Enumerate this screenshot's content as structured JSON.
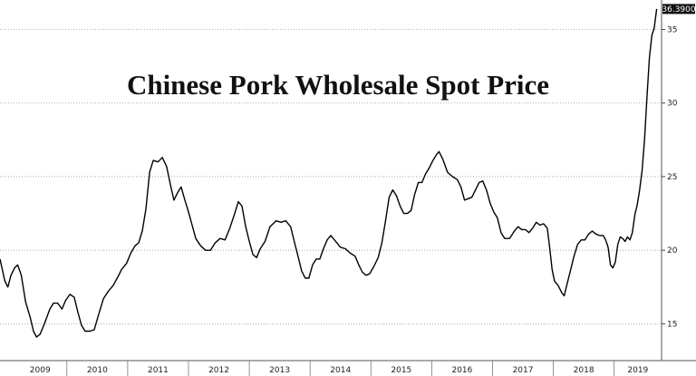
{
  "chart_data": {
    "type": "line",
    "title": "Chinese Pork Wholesale Spot Price",
    "xlabel": "",
    "ylabel": "",
    "ylim": [
      12.5,
      37
    ],
    "y_ticks": [
      15,
      20,
      25,
      30,
      35
    ],
    "x_range": [
      2008.9,
      2019.78
    ],
    "x_years": [
      "2009",
      "2010",
      "2011",
      "2012",
      "2013",
      "2014",
      "2015",
      "2016",
      "2017",
      "2018",
      "2019"
    ],
    "last_value_label": "36.3900",
    "grid": "horizontal dotted",
    "legend": "none",
    "colors": {
      "line": "#000000",
      "grid": "#9a9a9a",
      "label_bg": "#111111"
    },
    "series": [
      {
        "values": [
          [
            2008.9,
            19.4
          ],
          [
            2008.98,
            17.9
          ],
          [
            2009.03,
            17.5
          ],
          [
            2009.08,
            18.3
          ],
          [
            2009.14,
            18.8
          ],
          [
            2009.19,
            19.0
          ],
          [
            2009.25,
            18.3
          ],
          [
            2009.32,
            16.5
          ],
          [
            2009.4,
            15.4
          ],
          [
            2009.45,
            14.5
          ],
          [
            2009.5,
            14.1
          ],
          [
            2009.56,
            14.3
          ],
          [
            2009.63,
            15.0
          ],
          [
            2009.72,
            16.0
          ],
          [
            2009.78,
            16.4
          ],
          [
            2009.85,
            16.4
          ],
          [
            2009.92,
            16.0
          ],
          [
            2009.98,
            16.6
          ],
          [
            2010.05,
            17.0
          ],
          [
            2010.12,
            16.8
          ],
          [
            2010.18,
            15.8
          ],
          [
            2010.24,
            14.9
          ],
          [
            2010.3,
            14.5
          ],
          [
            2010.38,
            14.5
          ],
          [
            2010.45,
            14.6
          ],
          [
            2010.52,
            15.6
          ],
          [
            2010.6,
            16.7
          ],
          [
            2010.68,
            17.2
          ],
          [
            2010.76,
            17.6
          ],
          [
            2010.84,
            18.2
          ],
          [
            2010.9,
            18.7
          ],
          [
            2010.98,
            19.1
          ],
          [
            2011.05,
            19.8
          ],
          [
            2011.12,
            20.3
          ],
          [
            2011.18,
            20.5
          ],
          [
            2011.24,
            21.3
          ],
          [
            2011.3,
            22.8
          ],
          [
            2011.36,
            25.3
          ],
          [
            2011.42,
            26.1
          ],
          [
            2011.5,
            26.0
          ],
          [
            2011.57,
            26.3
          ],
          [
            2011.64,
            25.7
          ],
          [
            2011.7,
            24.5
          ],
          [
            2011.76,
            23.4
          ],
          [
            2011.82,
            23.9
          ],
          [
            2011.88,
            24.3
          ],
          [
            2011.94,
            23.4
          ],
          [
            2012.0,
            22.6
          ],
          [
            2012.06,
            21.7
          ],
          [
            2012.12,
            20.8
          ],
          [
            2012.2,
            20.3
          ],
          [
            2012.28,
            20.0
          ],
          [
            2012.36,
            20.0
          ],
          [
            2012.44,
            20.5
          ],
          [
            2012.52,
            20.8
          ],
          [
            2012.6,
            20.7
          ],
          [
            2012.68,
            21.5
          ],
          [
            2012.76,
            22.5
          ],
          [
            2012.82,
            23.3
          ],
          [
            2012.88,
            23.0
          ],
          [
            2012.94,
            21.6
          ],
          [
            2013.0,
            20.6
          ],
          [
            2013.06,
            19.7
          ],
          [
            2013.12,
            19.5
          ],
          [
            2013.18,
            20.1
          ],
          [
            2013.26,
            20.6
          ],
          [
            2013.34,
            21.6
          ],
          [
            2013.44,
            22.0
          ],
          [
            2013.52,
            21.9
          ],
          [
            2013.6,
            22.0
          ],
          [
            2013.68,
            21.6
          ],
          [
            2013.74,
            20.6
          ],
          [
            2013.8,
            19.6
          ],
          [
            2013.86,
            18.6
          ],
          [
            2013.92,
            18.1
          ],
          [
            2013.98,
            18.1
          ],
          [
            2014.04,
            19.0
          ],
          [
            2014.1,
            19.4
          ],
          [
            2014.16,
            19.4
          ],
          [
            2014.22,
            20.1
          ],
          [
            2014.28,
            20.7
          ],
          [
            2014.34,
            21.0
          ],
          [
            2014.42,
            20.6
          ],
          [
            2014.5,
            20.2
          ],
          [
            2014.58,
            20.1
          ],
          [
            2014.66,
            19.8
          ],
          [
            2014.74,
            19.6
          ],
          [
            2014.8,
            19.0
          ],
          [
            2014.86,
            18.5
          ],
          [
            2014.92,
            18.3
          ],
          [
            2014.98,
            18.4
          ],
          [
            2015.05,
            18.9
          ],
          [
            2015.12,
            19.5
          ],
          [
            2015.18,
            20.5
          ],
          [
            2015.24,
            22.0
          ],
          [
            2015.3,
            23.6
          ],
          [
            2015.36,
            24.1
          ],
          [
            2015.42,
            23.7
          ],
          [
            2015.48,
            23.0
          ],
          [
            2015.54,
            22.5
          ],
          [
            2015.6,
            22.5
          ],
          [
            2015.66,
            22.7
          ],
          [
            2015.72,
            23.8
          ],
          [
            2015.78,
            24.6
          ],
          [
            2015.84,
            24.6
          ],
          [
            2015.9,
            25.2
          ],
          [
            2015.96,
            25.6
          ],
          [
            2016.02,
            26.1
          ],
          [
            2016.08,
            26.5
          ],
          [
            2016.12,
            26.7
          ],
          [
            2016.18,
            26.2
          ],
          [
            2016.26,
            25.3
          ],
          [
            2016.34,
            25.0
          ],
          [
            2016.42,
            24.8
          ],
          [
            2016.48,
            24.3
          ],
          [
            2016.54,
            23.4
          ],
          [
            2016.6,
            23.5
          ],
          [
            2016.66,
            23.6
          ],
          [
            2016.72,
            24.1
          ],
          [
            2016.78,
            24.6
          ],
          [
            2016.84,
            24.7
          ],
          [
            2016.9,
            24.1
          ],
          [
            2016.96,
            23.2
          ],
          [
            2017.02,
            22.6
          ],
          [
            2017.08,
            22.2
          ],
          [
            2017.14,
            21.2
          ],
          [
            2017.2,
            20.8
          ],
          [
            2017.28,
            20.8
          ],
          [
            2017.36,
            21.3
          ],
          [
            2017.42,
            21.6
          ],
          [
            2017.48,
            21.4
          ],
          [
            2017.54,
            21.4
          ],
          [
            2017.6,
            21.2
          ],
          [
            2017.66,
            21.5
          ],
          [
            2017.72,
            21.9
          ],
          [
            2017.78,
            21.7
          ],
          [
            2017.84,
            21.8
          ],
          [
            2017.9,
            21.5
          ],
          [
            2017.94,
            20.2
          ],
          [
            2017.98,
            18.7
          ],
          [
            2018.02,
            17.9
          ],
          [
            2018.08,
            17.6
          ],
          [
            2018.14,
            17.1
          ],
          [
            2018.18,
            16.9
          ],
          [
            2018.22,
            17.6
          ],
          [
            2018.28,
            18.6
          ],
          [
            2018.34,
            19.6
          ],
          [
            2018.4,
            20.4
          ],
          [
            2018.46,
            20.7
          ],
          [
            2018.52,
            20.7
          ],
          [
            2018.58,
            21.1
          ],
          [
            2018.64,
            21.3
          ],
          [
            2018.7,
            21.1
          ],
          [
            2018.76,
            21.0
          ],
          [
            2018.82,
            21.0
          ],
          [
            2018.86,
            20.7
          ],
          [
            2018.9,
            20.2
          ],
          [
            2018.94,
            19.0
          ],
          [
            2018.98,
            18.8
          ],
          [
            2019.02,
            19.2
          ],
          [
            2019.06,
            20.4
          ],
          [
            2019.1,
            20.9
          ],
          [
            2019.14,
            20.8
          ],
          [
            2019.18,
            20.6
          ],
          [
            2019.22,
            20.9
          ],
          [
            2019.26,
            20.7
          ],
          [
            2019.3,
            21.2
          ],
          [
            2019.34,
            22.4
          ],
          [
            2019.38,
            23.1
          ],
          [
            2019.42,
            24.1
          ],
          [
            2019.46,
            25.4
          ],
          [
            2019.5,
            27.5
          ],
          [
            2019.54,
            30.4
          ],
          [
            2019.58,
            33.1
          ],
          [
            2019.62,
            34.6
          ],
          [
            2019.66,
            35.1
          ],
          [
            2019.7,
            36.39
          ]
        ]
      }
    ]
  }
}
